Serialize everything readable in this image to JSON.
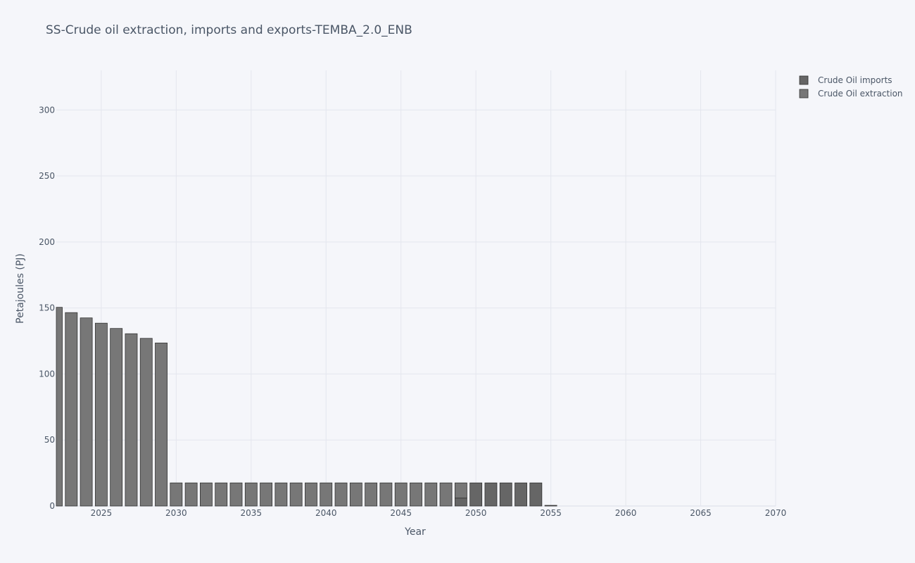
{
  "chart_data": {
    "type": "bar",
    "barmode": "stack",
    "title": "SS-Crude oil extraction, imports and exports-TEMBA_2.0_ENB",
    "xlabel": "Year",
    "ylabel": "Petajoules (PJ)",
    "xlim": [
      2022,
      2070
    ],
    "ylim": [
      0,
      330
    ],
    "x_ticks": [
      2025,
      2030,
      2035,
      2040,
      2045,
      2050,
      2055,
      2060,
      2065,
      2070
    ],
    "y_ticks": [
      0,
      50,
      100,
      150,
      200,
      250,
      300
    ],
    "grid": true,
    "legend_position": "top-right",
    "x": [
      2022,
      2023,
      2024,
      2025,
      2026,
      2027,
      2028,
      2029,
      2030,
      2031,
      2032,
      2033,
      2034,
      2035,
      2036,
      2037,
      2038,
      2039,
      2040,
      2041,
      2042,
      2043,
      2044,
      2045,
      2046,
      2047,
      2048,
      2049,
      2050,
      2051,
      2052,
      2053,
      2054,
      2055,
      2056,
      2057,
      2058,
      2059,
      2060,
      2061,
      2062,
      2063,
      2064,
      2065,
      2066,
      2067,
      2068,
      2069,
      2070
    ],
    "series": [
      {
        "name": "Crude Oil imports",
        "color": "#666666",
        "values": [
          0,
          0,
          0,
          0,
          0,
          0,
          0,
          0,
          0,
          0,
          0,
          0,
          0,
          0,
          0,
          0,
          0,
          0,
          0,
          0,
          0,
          0,
          0,
          0,
          0,
          0,
          0,
          6,
          17.5,
          17.5,
          17.5,
          17.5,
          17.5,
          0.5,
          0,
          0,
          0,
          0,
          0,
          0,
          0,
          0,
          0,
          0,
          0,
          0,
          0,
          0,
          0
        ]
      },
      {
        "name": "Crude Oil extraction",
        "color": "#777777",
        "values": [
          150.5,
          146.5,
          142.5,
          138.5,
          134.5,
          130.5,
          127,
          123.5,
          17.5,
          17.5,
          17.5,
          17.5,
          17.5,
          17.5,
          17.5,
          17.5,
          17.5,
          17.5,
          17.5,
          17.5,
          17.5,
          17.5,
          17.5,
          17.5,
          17.5,
          17.5,
          17.5,
          11.5,
          0,
          0,
          0,
          0,
          0,
          0,
          0,
          0,
          0,
          0,
          0,
          0,
          0,
          0,
          0,
          0,
          0,
          0,
          0,
          0,
          0
        ]
      }
    ]
  }
}
